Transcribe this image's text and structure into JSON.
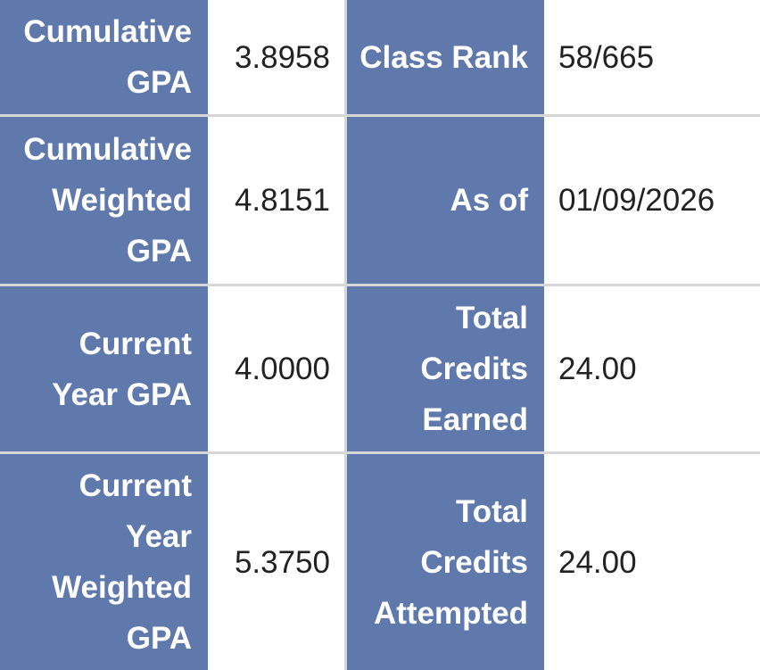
{
  "rows": [
    {
      "left_label": "Cumulative GPA",
      "left_value": "3.8958",
      "right_label": "Class Rank",
      "right_value": "58/665"
    },
    {
      "left_label": "Cumulative Weighted GPA",
      "left_value": "4.8151",
      "right_label": "As of",
      "right_value": "01/09/2026"
    },
    {
      "left_label": "Current Year GPA",
      "left_value": "4.0000",
      "right_label": "Total Credits Earned",
      "right_value": "24.00"
    },
    {
      "left_label": "Current Year Weighted GPA",
      "left_value": "5.3750",
      "right_label": "Total Credits Attempted",
      "right_value": "24.00"
    }
  ],
  "colors": {
    "label_bg": "#6079ac",
    "label_text": "#ffffff",
    "value_bg": "#ffffff",
    "value_text": "#222222",
    "divider": "#d6d6d6"
  }
}
